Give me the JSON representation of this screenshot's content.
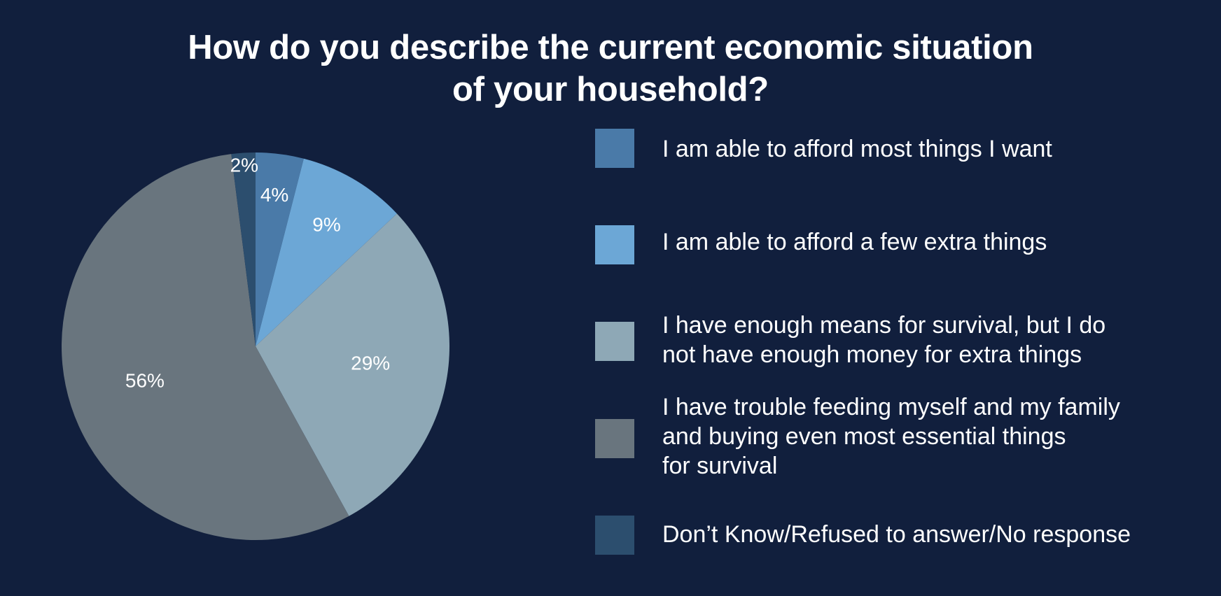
{
  "title_line1": "How do you describe the current economic situation",
  "title_line2": "of your household?",
  "chart_data": {
    "type": "pie",
    "title": "How do you describe the current economic situation of your household?",
    "slices": [
      {
        "label": "I am able to afford most things I want",
        "value": 4,
        "value_label": "4%",
        "color": "#4a7aa8"
      },
      {
        "label": "I am able to afford a few extra things",
        "value": 9,
        "value_label": "9%",
        "color": "#6ca7d6"
      },
      {
        "label": "I have enough means for survival, but I do\nnot have enough money for extra things",
        "value": 29,
        "value_label": "29%",
        "color": "#8ea8b6"
      },
      {
        "label": "I have trouble feeding myself and my family\nand buying even most essential things\nfor survival",
        "value": 56,
        "value_label": "56%",
        "color": "#69757e"
      },
      {
        "label": "Don’t Know/Refused to answer/No response",
        "value": 2,
        "value_label": "2%",
        "color": "#2c4e6e"
      }
    ],
    "legend_position": "right"
  }
}
